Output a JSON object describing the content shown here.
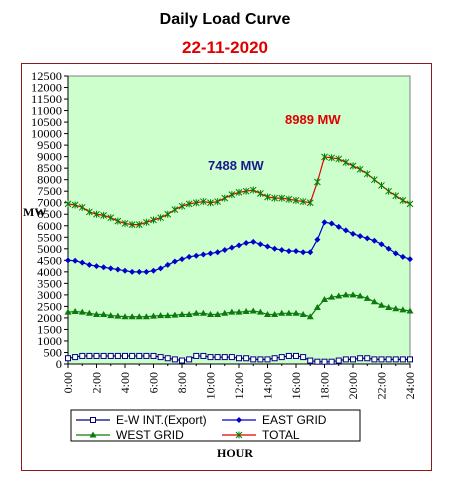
{
  "title": "Daily Load Curve",
  "subtitle": "22-11-2020",
  "chart_data": {
    "type": "line",
    "xlabel": "HOUR",
    "ylabel": "MW",
    "ylim": [
      0,
      12500
    ],
    "yticks": [
      0,
      500,
      1000,
      1500,
      2000,
      2500,
      3000,
      3500,
      4000,
      4500,
      5000,
      5500,
      6000,
      6500,
      7000,
      7500,
      8000,
      8500,
      9000,
      9500,
      10000,
      10500,
      11000,
      11500,
      12000,
      12500
    ],
    "xlim": [
      0,
      24
    ],
    "xticks": [
      "0:00",
      "2:00",
      "4:00",
      "6:00",
      "8:00",
      "10:00",
      "12:00",
      "14:00",
      "16:00",
      "18:00",
      "20:00",
      "22:00",
      "24:00"
    ],
    "grid": false,
    "plot_background": "#ccffcc",
    "legend_position": "bottom",
    "x": [
      0,
      0.5,
      1,
      1.5,
      2,
      2.5,
      3,
      3.5,
      4,
      4.5,
      5,
      5.5,
      6,
      6.5,
      7,
      7.5,
      8,
      8.5,
      9,
      9.5,
      10,
      10.5,
      11,
      11.5,
      12,
      12.5,
      13,
      13.5,
      14,
      14.5,
      15,
      15.5,
      16,
      16.5,
      17,
      17.5,
      18,
      18.5,
      19,
      19.5,
      20,
      20.5,
      21,
      21.5,
      22,
      22.5,
      23,
      23.5,
      24
    ],
    "series": [
      {
        "name": "E-W INT.(Export)",
        "color": "#000080",
        "marker": "square-open",
        "values": [
          250,
          300,
          350,
          350,
          350,
          350,
          350,
          350,
          350,
          350,
          350,
          350,
          350,
          300,
          250,
          200,
          150,
          200,
          350,
          350,
          300,
          300,
          300,
          300,
          250,
          250,
          200,
          200,
          200,
          250,
          300,
          350,
          350,
          300,
          150,
          100,
          100,
          100,
          150,
          200,
          200,
          250,
          250,
          200,
          200,
          200,
          200,
          200,
          200
        ]
      },
      {
        "name": "EAST GRID",
        "color": "#0000cc",
        "marker": "diamond",
        "values": [
          4500,
          4480,
          4400,
          4300,
          4250,
          4200,
          4150,
          4100,
          4050,
          4000,
          4000,
          4000,
          4050,
          4150,
          4300,
          4450,
          4550,
          4650,
          4700,
          4750,
          4800,
          4850,
          4950,
          5050,
          5150,
          5250,
          5300,
          5200,
          5100,
          5000,
          4950,
          4900,
          4900,
          4850,
          4850,
          5400,
          6150,
          6100,
          5950,
          5800,
          5650,
          5550,
          5450,
          5350,
          5200,
          5000,
          4800,
          4650,
          4550
        ]
      },
      {
        "name": "WEST GRID",
        "color": "#0d7a0d",
        "marker": "triangle",
        "values": [
          2250,
          2280,
          2250,
          2200,
          2150,
          2150,
          2100,
          2080,
          2050,
          2050,
          2050,
          2050,
          2080,
          2100,
          2100,
          2120,
          2150,
          2150,
          2200,
          2200,
          2150,
          2150,
          2200,
          2250,
          2250,
          2280,
          2300,
          2250,
          2150,
          2150,
          2200,
          2200,
          2200,
          2150,
          2050,
          2450,
          2800,
          2900,
          2950,
          3000,
          3000,
          2950,
          2850,
          2700,
          2550,
          2450,
          2400,
          2350,
          2300
        ]
      },
      {
        "name": "TOTAL",
        "color": "#e00000",
        "marker": "star",
        "values": [
          6950,
          6900,
          6800,
          6600,
          6500,
          6450,
          6350,
          6200,
          6100,
          6050,
          6050,
          6150,
          6250,
          6350,
          6500,
          6700,
          6850,
          6950,
          7000,
          7050,
          7000,
          7050,
          7200,
          7350,
          7450,
          7500,
          7550,
          7400,
          7250,
          7200,
          7200,
          7150,
          7100,
          7050,
          7000,
          7900,
          8989,
          8950,
          8900,
          8750,
          8600,
          8450,
          8250,
          8000,
          7750,
          7500,
          7300,
          7100,
          6950
        ]
      }
    ],
    "annotations": [
      {
        "text": "8989 MW",
        "color": "#e00000"
      },
      {
        "text": "7488 MW",
        "color": "#1a1a8c"
      }
    ]
  }
}
